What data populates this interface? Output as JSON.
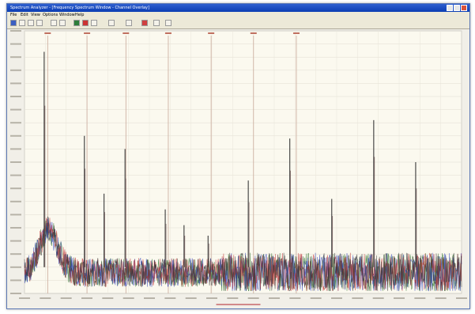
{
  "window": {
    "title": "Spectrum Analyzer - [Frequency Spectrum Window - Channel Overlay]",
    "menu": [
      "File",
      "Edit",
      "View",
      "Options",
      "Window",
      "Help"
    ]
  },
  "toolbar": {
    "icons": [
      "open-icon",
      "save-icon",
      "print-icon",
      "zoom-in-icon",
      "zoom-out-icon",
      "cursor-icon",
      "marker-icon",
      "peak-icon",
      "grid-icon",
      "settings-icon",
      "overlay-icon",
      "stop-icon",
      "record-icon",
      "export-icon"
    ]
  },
  "status": {
    "text": ""
  },
  "chart_data": {
    "type": "line",
    "title": "",
    "xlabel": "",
    "ylabel": "",
    "grid": true,
    "legend": "none",
    "marker_lines_x": [
      0.053,
      0.143,
      0.232,
      0.329,
      0.427,
      0.524,
      0.622
    ],
    "series_colors": [
      "#2a6e2a",
      "#2a3bb8",
      "#c03030",
      "#303030"
    ],
    "peaks": [
      {
        "x": 0.045,
        "height": 0.92
      },
      {
        "x": 0.137,
        "height": 0.6
      },
      {
        "x": 0.182,
        "height": 0.38
      },
      {
        "x": 0.23,
        "height": 0.55
      },
      {
        "x": 0.322,
        "height": 0.32
      },
      {
        "x": 0.365,
        "height": 0.26
      },
      {
        "x": 0.42,
        "height": 0.22
      },
      {
        "x": 0.512,
        "height": 0.43
      },
      {
        "x": 0.607,
        "height": 0.59
      },
      {
        "x": 0.703,
        "height": 0.36
      },
      {
        "x": 0.799,
        "height": 0.66
      },
      {
        "x": 0.895,
        "height": 0.5
      }
    ]
  }
}
